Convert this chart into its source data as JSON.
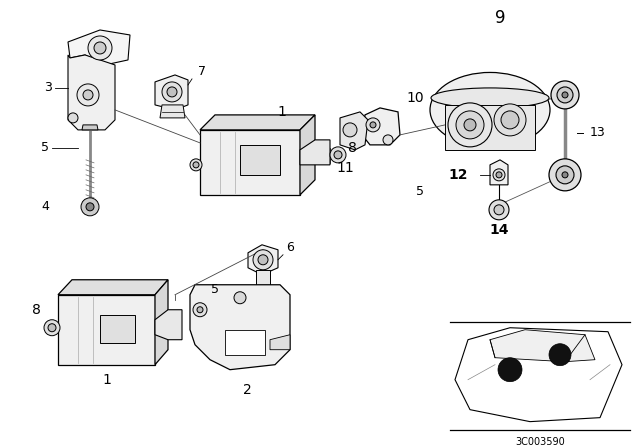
{
  "bg_color": "#ffffff",
  "lc": "#000000",
  "fig_w": 6.4,
  "fig_h": 4.48,
  "dpi": 100,
  "code_text": "3C003590"
}
